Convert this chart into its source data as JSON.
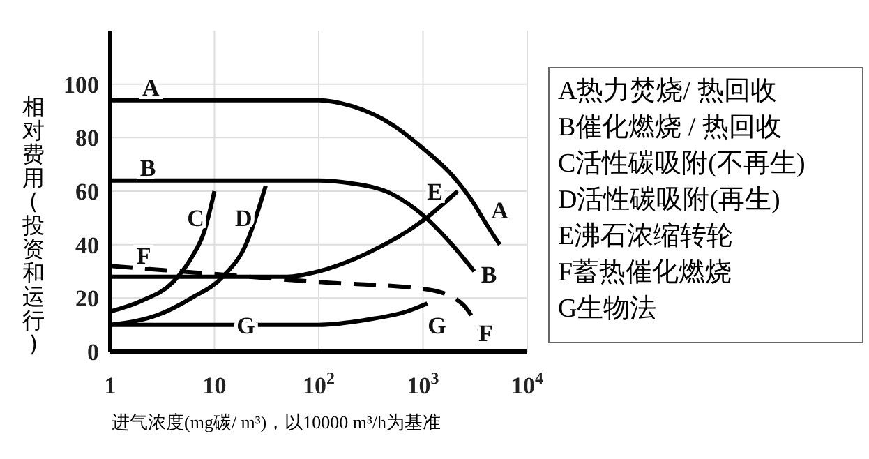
{
  "chart_data": {
    "type": "line",
    "xlabel": "进气浓度(mg碳/ m³)，以10000 m³/h为基准",
    "ylabel": "相对费用(投资和运行)",
    "log": "x",
    "grid": true,
    "legend": false,
    "marker": "none",
    "xlim": [
      1,
      10000
    ],
    "xticks": [
      1,
      10,
      {
        "value": 100,
        "label": "10$^{2}$"
      },
      {
        "value": 1000,
        "label": "10$^{3}$"
      },
      {
        "value": 10000,
        "label": "10$^{4}$"
      }
    ],
    "ylim": [
      0,
      120
    ],
    "yticks": [
      0,
      20,
      40,
      60,
      80,
      100
    ],
    "series": [
      {
        "name": "A",
        "color": "#000000",
        "line_style": "solid",
        "x": [
          1,
          100,
          200,
          500,
          1000,
          2000,
          3000,
          4000,
          5450
        ],
        "values": [
          94,
          94,
          92,
          85,
          76,
          65,
          56,
          48,
          40
        ]
      },
      {
        "name": "B",
        "color": "#000000",
        "line_style": "solid",
        "x": [
          1,
          100,
          200,
          500,
          1000,
          2000,
          3100
        ],
        "values": [
          64,
          64,
          63,
          59,
          51,
          39,
          30
        ]
      },
      {
        "name": "C",
        "color": "#000000",
        "line_style": "solid",
        "x": [
          1,
          2,
          4,
          6,
          8,
          10
        ],
        "values": [
          15,
          19,
          26,
          35,
          45,
          60
        ]
      },
      {
        "name": "D",
        "color": "#000000",
        "line_style": "solid",
        "x": [
          1,
          3,
          6,
          12,
          20,
          31
        ],
        "values": [
          10,
          14,
          20,
          28,
          40,
          62
        ]
      },
      {
        "name": "E",
        "color": "#000000",
        "line_style": "solid",
        "x": [
          1,
          50,
          100,
          300,
          1000,
          2150
        ],
        "values": [
          28,
          28,
          30,
          37,
          49,
          60
        ]
      },
      {
        "name": "F",
        "color": "#000000",
        "line_style": "dashed",
        "x": [
          1,
          10,
          100,
          1000,
          2000,
          2500,
          3500
        ],
        "values": [
          32,
          29,
          26,
          23.5,
          20,
          17,
          8
        ]
      },
      {
        "name": "G",
        "color": "#000000",
        "line_style": "solid",
        "x": [
          1,
          100,
          300,
          700,
          1100
        ],
        "values": [
          10,
          10,
          12,
          15,
          18
        ]
      }
    ],
    "annotations": [
      "A热力焚烧/ 热回收",
      "B催化燃烧 / 热回收",
      "C活性碳吸附(不再生)",
      "D活性碳吸附(再生)",
      "E沸石浓缩转轮",
      "F蓄热催化燃烧",
      "G生物法"
    ]
  }
}
